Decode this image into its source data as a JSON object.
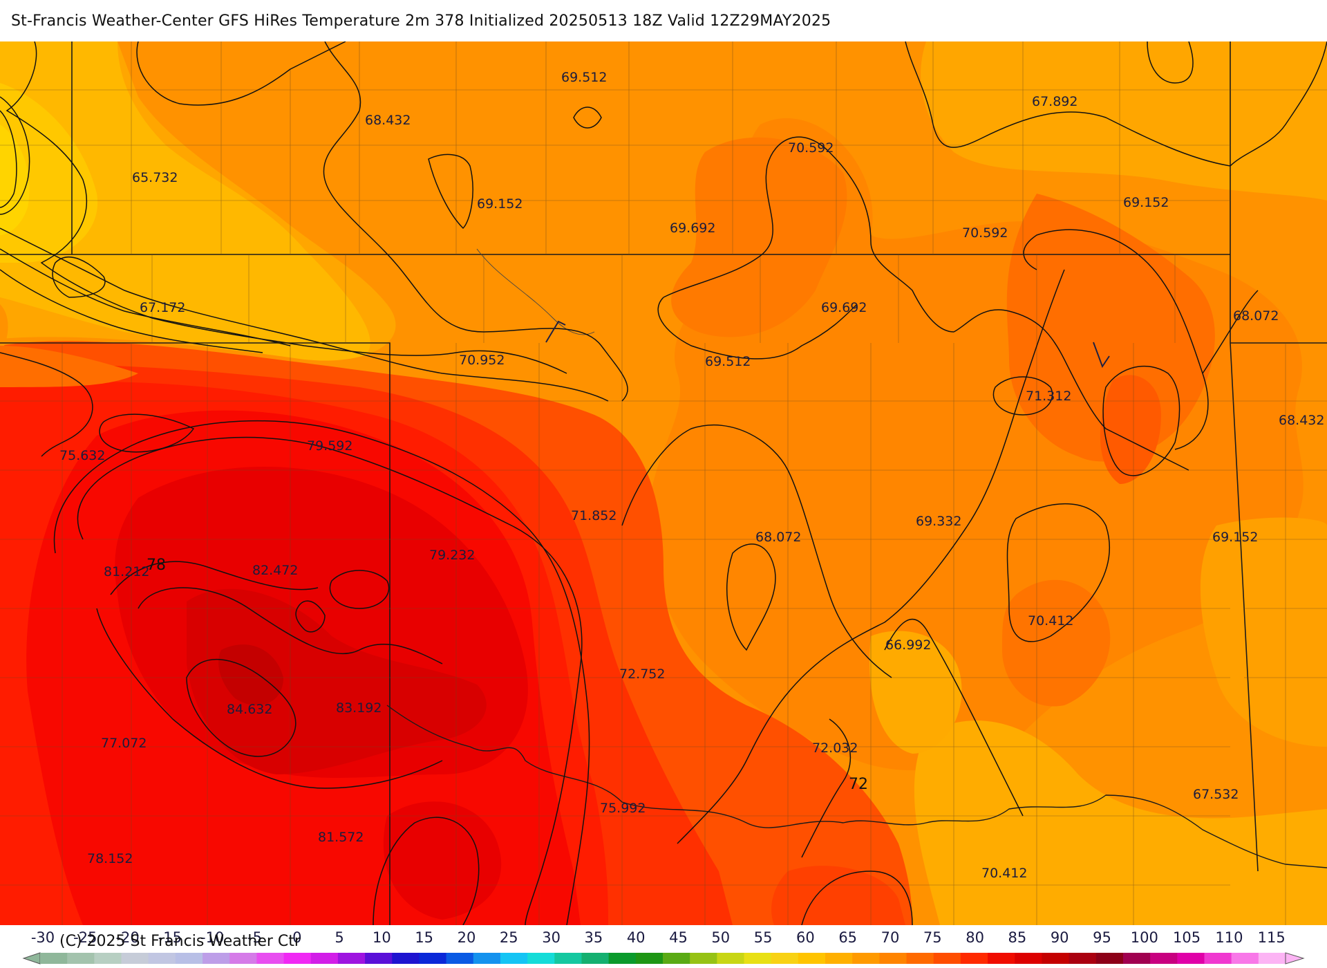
{
  "title": "St-Francis Weather-Center GFS HiRes Temperature 2m  378 Initialized 20250513 18Z Valid 12Z29MAY2025",
  "copyright": "(C) 2025 St Francis Weather Ctr",
  "colorbar": {
    "ticks": [
      "-30",
      "-25",
      "-20",
      "-15",
      "-10",
      "-5",
      "0",
      "5",
      "10",
      "15",
      "20",
      "25",
      "30",
      "35",
      "40",
      "45",
      "50",
      "55",
      "60",
      "65",
      "70",
      "75",
      "80",
      "85",
      "90",
      "95",
      "100",
      "105",
      "110",
      "115"
    ],
    "colors": [
      "#8fb79a",
      "#a3c3ad",
      "#b7cfc2",
      "#c6ccd8",
      "#c1c6e2",
      "#b8bfe6",
      "#bd9ee8",
      "#d57be8",
      "#e84ef0",
      "#f028f4",
      "#d21ee8",
      "#9e14e0",
      "#5a10d8",
      "#1e14d0",
      "#0a28d8",
      "#0a5ae4",
      "#1492ee",
      "#14c4f4",
      "#14dcd8",
      "#14c8a0",
      "#14b070",
      "#0a9a2c",
      "#1e9614",
      "#5aaa14",
      "#96c214",
      "#c8d614",
      "#e8e014",
      "#f8d214",
      "#ffc400",
      "#ffb000",
      "#ff9a00",
      "#ff8400",
      "#ff6a00",
      "#ff4e00",
      "#ff2a00",
      "#f00c00",
      "#dc0000",
      "#c40000",
      "#aa0010",
      "#8c0018",
      "#a00050",
      "#c80080",
      "#e000a8",
      "#f038d0",
      "#f878e8",
      "#fcb4f4"
    ]
  },
  "map": {
    "temperature_labels": [
      {
        "text": "69.512"
      },
      {
        "text": "68.432"
      },
      {
        "text": "67.892"
      },
      {
        "text": "65.732"
      },
      {
        "text": "69.152"
      },
      {
        "text": "70.592"
      },
      {
        "text": "69.692"
      },
      {
        "text": "70.592"
      },
      {
        "text": "69.152"
      },
      {
        "text": "67.172"
      },
      {
        "text": "69.692"
      },
      {
        "text": "68.072"
      },
      {
        "text": "70.952"
      },
      {
        "text": "69.512"
      },
      {
        "text": "71.312"
      },
      {
        "text": "68.432"
      },
      {
        "text": "75.632"
      },
      {
        "text": "79.592"
      },
      {
        "text": "71.852"
      },
      {
        "text": "69.332"
      },
      {
        "text": "68.072"
      },
      {
        "text": "69.152"
      },
      {
        "text": "79.232"
      },
      {
        "text": "81.212"
      },
      {
        "text": "82.472"
      },
      {
        "text": "70.412"
      },
      {
        "text": "66.992"
      },
      {
        "text": "72.752"
      },
      {
        "text": "84.632"
      },
      {
        "text": "83.192"
      },
      {
        "text": "77.072"
      },
      {
        "text": "72.032"
      },
      {
        "text": "67.532"
      },
      {
        "text": "75.992"
      },
      {
        "text": "81.572"
      },
      {
        "text": "78.152"
      },
      {
        "text": "70.412"
      }
    ],
    "contour_labels": [
      {
        "text": "78"
      },
      {
        "text": "72"
      }
    ],
    "region_colors": {
      "base": "#ffa600",
      "light": "#ffbd00",
      "mid": "#ff9000",
      "warm": "#ff7400",
      "hot": "#ff5200",
      "hotter": "#ff3200",
      "red": "#ff1000",
      "deep": "#ee0000",
      "darkest": "#d40000"
    }
  }
}
